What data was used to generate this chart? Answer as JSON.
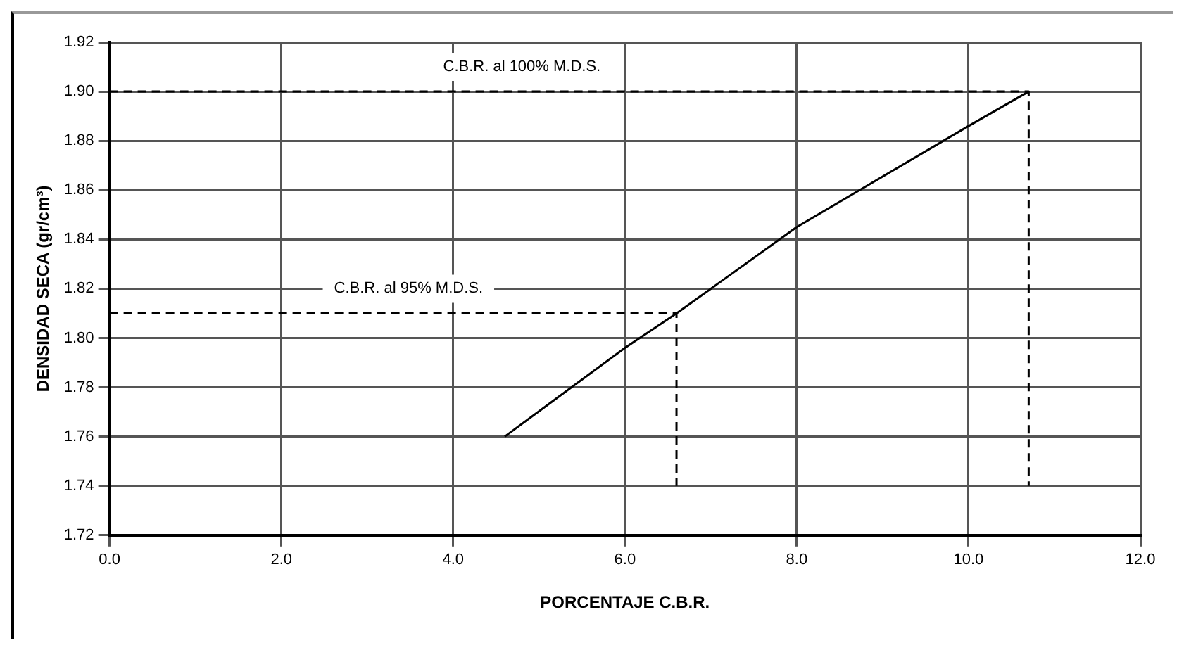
{
  "chart_data": {
    "type": "line",
    "xlabel": "PORCENTAJE C.B.R.",
    "ylabel": "DENSIDAD SECA (gr/cm³)",
    "xlim": [
      0,
      12
    ],
    "ylim": [
      1.72,
      1.92
    ],
    "xticks": [
      {
        "value": 0,
        "label": "0.0"
      },
      {
        "value": 2,
        "label": "2.0"
      },
      {
        "value": 4,
        "label": "4.0"
      },
      {
        "value": 6,
        "label": "6.0"
      },
      {
        "value": 8,
        "label": "8.0"
      },
      {
        "value": 10,
        "label": "10.0"
      },
      {
        "value": 12,
        "label": "12.0"
      }
    ],
    "yticks": [
      {
        "value": 1.72,
        "label": "1.72"
      },
      {
        "value": 1.74,
        "label": "1.74"
      },
      {
        "value": 1.76,
        "label": "1.76"
      },
      {
        "value": 1.78,
        "label": "1.78"
      },
      {
        "value": 1.8,
        "label": "1.80"
      },
      {
        "value": 1.82,
        "label": "1.82"
      },
      {
        "value": 1.84,
        "label": "1.84"
      },
      {
        "value": 1.86,
        "label": "1.86"
      },
      {
        "value": 1.88,
        "label": "1.88"
      },
      {
        "value": 1.9,
        "label": "1.90"
      },
      {
        "value": 1.92,
        "label": "1.92"
      }
    ],
    "grid": true,
    "series": [
      {
        "color": "#000000",
        "x": [
          4.6,
          6.0,
          6.6,
          8.0,
          10.0,
          10.7
        ],
        "values": [
          1.76,
          1.796,
          1.81,
          1.845,
          1.886,
          1.9
        ],
        "line_style": "solid"
      },
      {
        "color": "#000000",
        "x": [
          0,
          10.7,
          10.7
        ],
        "values": [
          1.9,
          1.9,
          1.74
        ],
        "line_style": "dashed"
      },
      {
        "color": "#000000",
        "x": [
          0,
          6.6,
          6.6
        ],
        "values": [
          1.81,
          1.81,
          1.74
        ],
        "line_style": "dashed"
      }
    ],
    "annotations": [
      "C.B.R. al 100% M.D.S.",
      "C.B.R. al 95% M.D.S."
    ]
  }
}
